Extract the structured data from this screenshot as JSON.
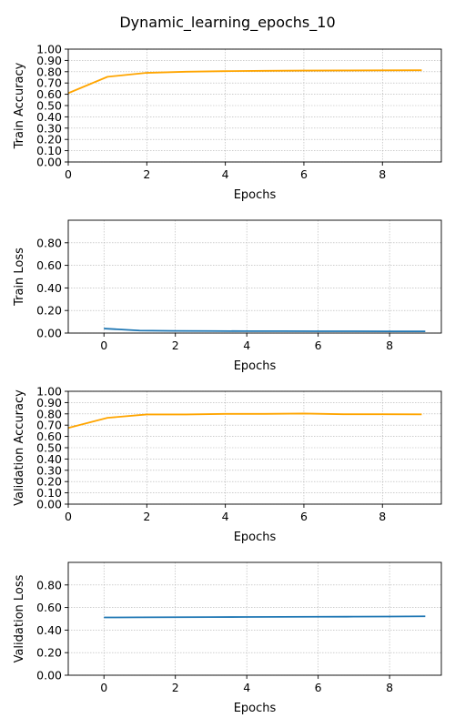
{
  "figure_title": "Dynamic_learning_epochs_10",
  "chart_data": [
    {
      "type": "line",
      "xlabel": "Epochs",
      "ylabel": "Train Accuracy",
      "x": [
        0,
        1,
        2,
        3,
        4,
        5,
        6,
        7,
        8,
        9
      ],
      "series": [
        {
          "values": [
            0.61,
            0.755,
            0.79,
            0.8,
            0.805,
            0.808,
            0.81,
            0.811,
            0.812,
            0.813
          ],
          "color": "#ffa500"
        }
      ],
      "xlim": [
        0,
        9.5
      ],
      "ylim": [
        0,
        1.0
      ],
      "xticks": [
        0,
        2,
        4,
        6,
        8
      ],
      "yticks": [
        0.0,
        0.1,
        0.2,
        0.3,
        0.4,
        0.5,
        0.6,
        0.7,
        0.8,
        0.9,
        1.0
      ],
      "ytick_labels": [
        "0.00",
        "0.10",
        "0.20",
        "0.30",
        "0.40",
        "0.50",
        "0.60",
        "0.70",
        "0.80",
        "0.90",
        "1.00"
      ],
      "grid": true
    },
    {
      "type": "line",
      "xlabel": "Epochs",
      "ylabel": "Train Loss",
      "x": [
        0,
        1,
        2,
        3,
        4,
        5,
        6,
        7,
        8,
        9
      ],
      "series": [
        {
          "values": [
            0.04,
            0.022,
            0.019,
            0.018,
            0.017,
            0.017,
            0.016,
            0.016,
            0.015,
            0.015
          ],
          "color": "#1f77b4"
        }
      ],
      "xlim": [
        -1,
        9.45
      ],
      "ylim": [
        0,
        1.0
      ],
      "xticks": [
        0,
        2,
        4,
        6,
        8
      ],
      "yticks": [
        0.0,
        0.2,
        0.4,
        0.6,
        0.8
      ],
      "ytick_labels": [
        "0.00",
        "0.20",
        "0.40",
        "0.60",
        "0.80"
      ],
      "grid": true
    },
    {
      "type": "line",
      "xlabel": "Epochs",
      "ylabel": "Validation Accuracy",
      "x": [
        0,
        1,
        2,
        3,
        4,
        5,
        6,
        7,
        8,
        9
      ],
      "series": [
        {
          "values": [
            0.675,
            0.765,
            0.795,
            0.795,
            0.8,
            0.8,
            0.803,
            0.797,
            0.797,
            0.796
          ],
          "color": "#ffa500"
        }
      ],
      "xlim": [
        0,
        9.5
      ],
      "ylim": [
        0,
        1.0
      ],
      "xticks": [
        0,
        2,
        4,
        6,
        8
      ],
      "yticks": [
        0.0,
        0.1,
        0.2,
        0.3,
        0.4,
        0.5,
        0.6,
        0.7,
        0.8,
        0.9,
        1.0
      ],
      "ytick_labels": [
        "0.00",
        "0.10",
        "0.20",
        "0.30",
        "0.40",
        "0.50",
        "0.60",
        "0.70",
        "0.80",
        "0.90",
        "1.00"
      ],
      "grid": true
    },
    {
      "type": "line",
      "xlabel": "Epochs",
      "ylabel": "Validation Loss",
      "x": [
        0,
        1,
        2,
        3,
        4,
        5,
        6,
        7,
        8,
        9
      ],
      "series": [
        {
          "values": [
            0.512,
            0.513,
            0.514,
            0.515,
            0.516,
            0.517,
            0.518,
            0.519,
            0.52,
            0.522
          ],
          "color": "#1f77b4"
        }
      ],
      "xlim": [
        -1,
        9.45
      ],
      "ylim": [
        0,
        1.0
      ],
      "xticks": [
        0,
        2,
        4,
        6,
        8
      ],
      "yticks": [
        0.0,
        0.2,
        0.4,
        0.6,
        0.8
      ],
      "ytick_labels": [
        "0.00",
        "0.20",
        "0.40",
        "0.60",
        "0.80"
      ],
      "grid": true
    }
  ]
}
